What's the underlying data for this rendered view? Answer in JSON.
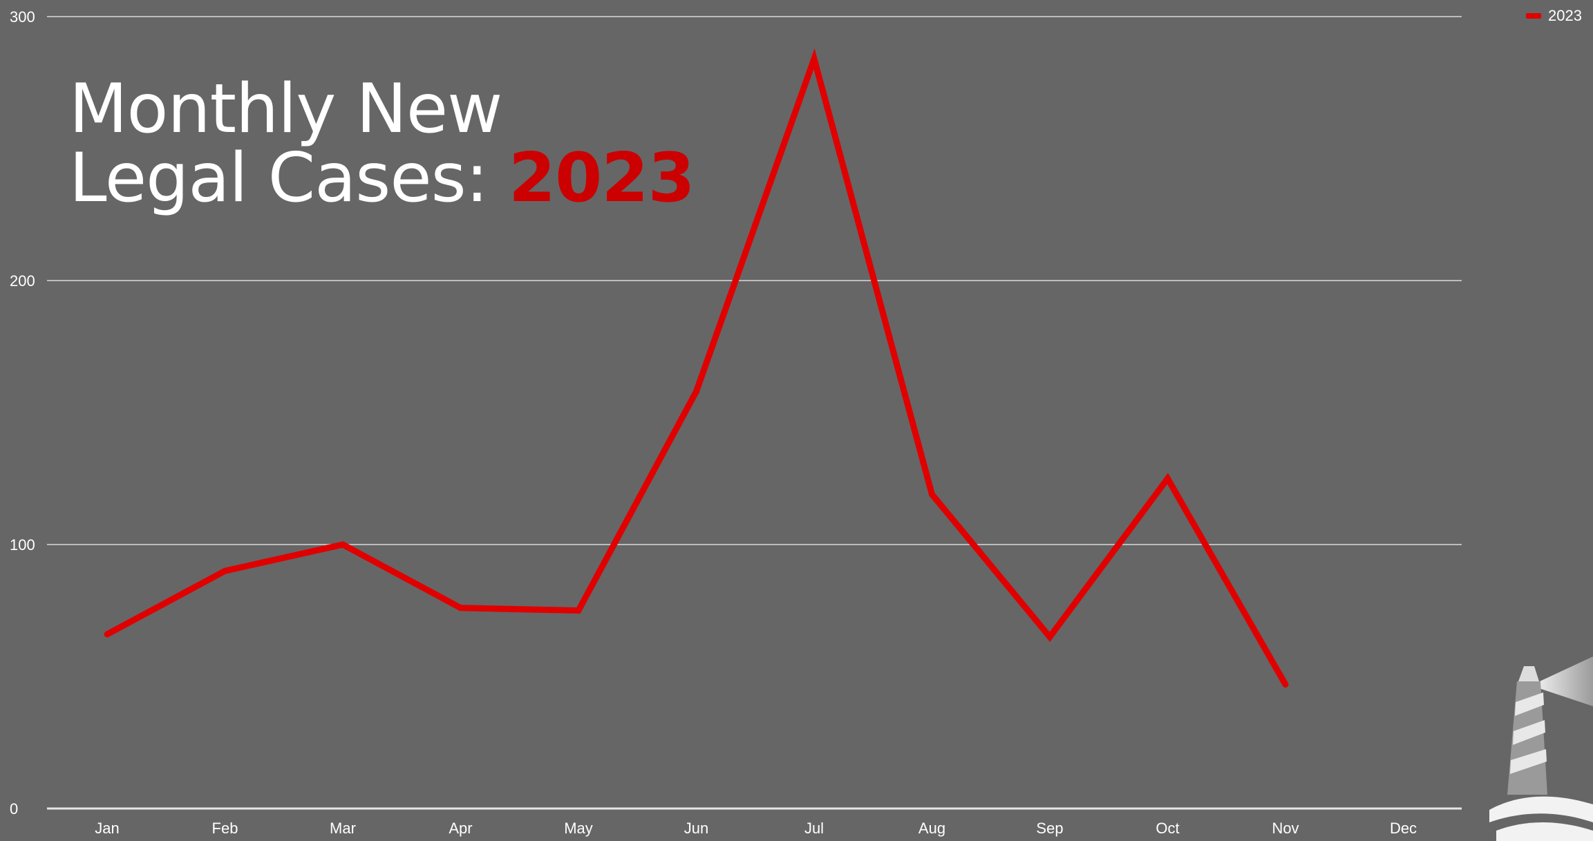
{
  "chart_data": {
    "type": "line",
    "title_line1": "Monthly New",
    "title_line2": "Legal Cases:",
    "title_year": "2023",
    "categories": [
      "Jan",
      "Feb",
      "Mar",
      "Apr",
      "May",
      "Jun",
      "Jul",
      "Aug",
      "Sep",
      "Oct",
      "Nov",
      "Dec"
    ],
    "series": [
      {
        "name": "2023",
        "color": "#e00000",
        "values": [
          66,
          90,
          100,
          76,
          75,
          158,
          284,
          119,
          65,
          125,
          47,
          null
        ]
      }
    ],
    "yticks": [
      "300",
      "200",
      "100",
      "0"
    ],
    "ylim": [
      0,
      300
    ],
    "grid": true,
    "legend_position": "top-right",
    "xlabel": "",
    "ylabel": ""
  },
  "logo": {
    "icon": "lighthouse-icon"
  }
}
